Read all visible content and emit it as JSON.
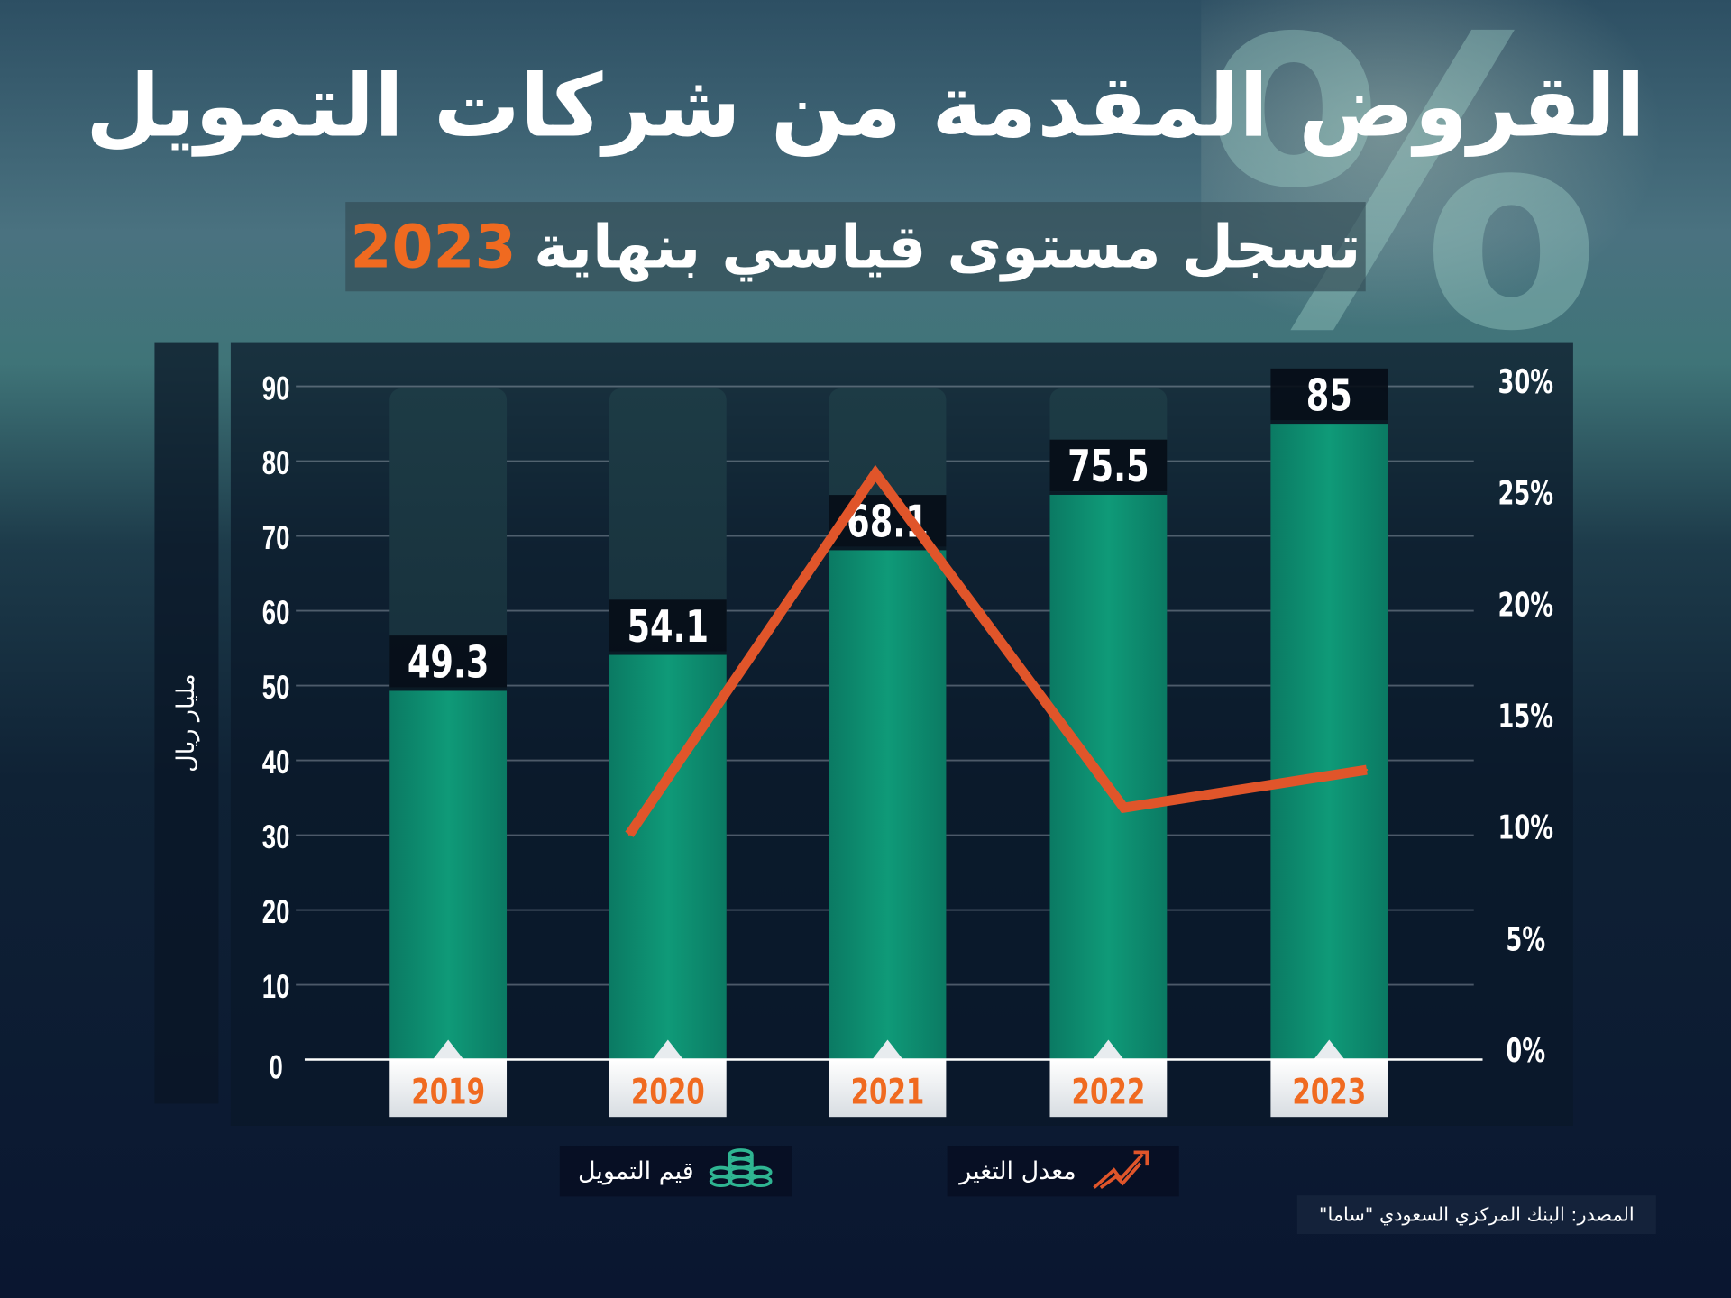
{
  "chart_data": {
    "type": "bar",
    "title": "القروض المقدمة من شركات التمويل",
    "subtitle": "تسجل مستوى قياسي بنهاية",
    "subtitle_year": "2023",
    "ylabel": "مليار ريال",
    "categories": [
      "2019",
      "2020",
      "2021",
      "2022",
      "2023"
    ],
    "series": [
      {
        "name": "قيم التمويل",
        "type": "bar",
        "axis": "left",
        "values": [
          49.3,
          54.1,
          68.1,
          75.5,
          85
        ],
        "labels": [
          "49.3",
          "54.1",
          "68.1",
          "75.5",
          "85"
        ]
      },
      {
        "name": "معدل التغير",
        "type": "line",
        "axis": "right",
        "values": [
          null,
          9.7,
          25.9,
          10.9,
          12.6
        ]
      }
    ],
    "ylim": [
      0,
      90
    ],
    "yticks": [
      "0",
      "10",
      "20",
      "30",
      "40",
      "50",
      "60",
      "70",
      "80",
      "90"
    ],
    "y2lim": [
      0,
      30
    ],
    "y2ticks": [
      "0%",
      "5%",
      "10%",
      "15%",
      "20%",
      "25%",
      "30%"
    ],
    "grid": true,
    "legend_placement": "bottom",
    "source": "المصدر: البنك المركزي السعودي \"ساما\"",
    "colors": {
      "bar": "#0f9a78",
      "line": "#e0552a",
      "year": "#f06a20",
      "background": "#0a1730"
    }
  }
}
